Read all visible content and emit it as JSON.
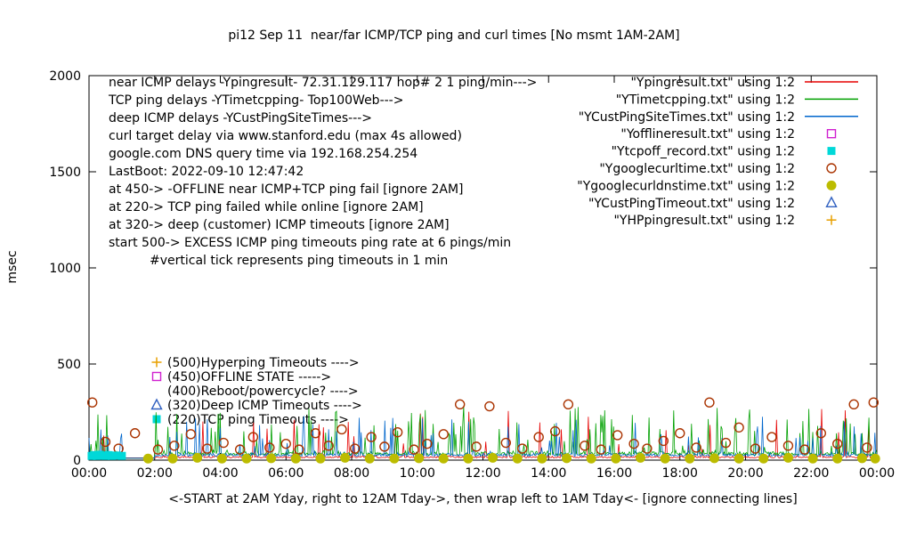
{
  "title": "pi12 Sep 11  near/far ICMP/TCP ping and curl times [No msmt 1AM-2AM]",
  "ylabel": "msec",
  "xlabel": "<-START at 2AM Yday, right to 12AM Tday->, then wrap left to 1AM Tday<- [ignore connecting lines]",
  "chart_data": {
    "type": "line",
    "x_range_hours": [
      0,
      24
    ],
    "ylim": [
      0,
      2000
    ],
    "y_ticks": [
      0,
      500,
      1000,
      1500,
      2000
    ],
    "x_ticks": [
      "00:00",
      "02:00",
      "04:00",
      "06:00",
      "08:00",
      "10:00",
      "12:00",
      "14:00",
      "16:00",
      "18:00",
      "20:00",
      "22:00",
      "00:00"
    ],
    "grid": false,
    "legend_position": "top-right",
    "legend": [
      {
        "label": "\"Ypingresult.txt\" using 1:2",
        "sample": "line",
        "color": "#e60000"
      },
      {
        "label": "\"YTimetcpping.txt\" using 1:2",
        "sample": "line",
        "color": "#00a000"
      },
      {
        "label": "\"YCustPingSiteTimes.txt\" using 1:2",
        "sample": "line",
        "color": "#0066cc"
      },
      {
        "label": "\"Yofflineresult.txt\" using 1:2",
        "sample": "open-square",
        "color": "#d020d0"
      },
      {
        "label": "\"Ytcpoff_record.txt\" using 1:2",
        "sample": "filled-square",
        "color": "#00d8d8"
      },
      {
        "label": "\"Ygooglecurltime.txt\" using 1:2",
        "sample": "open-circle",
        "color": "#aa3300"
      },
      {
        "label": "\"Ygooglecurldnstime.txt\" using 1:2",
        "sample": "filled-circle",
        "color": "#bcbc00"
      },
      {
        "label": "\"YCustPingTimeout.txt\" using 1:2",
        "sample": "open-triangle",
        "color": "#3060c0"
      },
      {
        "label": "\"YHPpingresult.txt\" using 1:2",
        "sample": "plus",
        "color": "#e8a000"
      }
    ],
    "info_lines": [
      "near ICMP delays -Ypingresult- 72.31.129.117 hop# 2 1 ping/min--->",
      "TCP ping delays -YTimetcpping- Top100Web--->",
      "deep ICMP delays -YCustPingSiteTimes--->",
      "curl target delay via www.stanford.edu (max 4s allowed)",
      "google.com DNS query time via 192.168.254.254",
      "LastBoot: 2022-09-10 12:47:42",
      "at 450-> -OFFLINE near ICMP+TCP ping fail [ignore 2AM]",
      "at 220-> TCP ping failed while online [ignore 2AM]",
      "at 320-> deep (customer) ICMP timeouts [ignore 2AM]",
      "start 500-> EXCESS ICMP ping timeouts ping rate at 6 pings/min",
      "#vertical tick represents ping timeouts in 1 min"
    ],
    "level_annotations": [
      {
        "label": "(500)Hyperping Timeouts ---->",
        "marker": "plus",
        "color": "#e8a000"
      },
      {
        "label": "(450)OFFLINE STATE ----->",
        "marker": "open-square",
        "color": "#d020d0"
      },
      {
        "label": "(400)Reboot/powercycle? ---->",
        "marker": "none",
        "color": ""
      },
      {
        "label": "(320)Deep ICMP Timeouts ---->",
        "marker": "open-triangle",
        "color": "#3060c0"
      },
      {
        "label": "(220)TCP ping Timeouts ---->",
        "marker": "filled-square",
        "color": "#00d8d8"
      }
    ],
    "no_msmt_window_hours": [
      1,
      2
    ],
    "line_series": [
      {
        "name": "near-icmp-ping",
        "color": "#e60000",
        "base": 12,
        "jitter": 9,
        "spike_prob": 0.05,
        "spike_max": 260,
        "flat_value": 12,
        "points": 700,
        "seed": 11
      },
      {
        "name": "tcp-ping",
        "color": "#00a000",
        "base": 25,
        "jitter": 22,
        "spike_prob": 0.16,
        "spike_max": 240,
        "flat_value": 10,
        "points": 800,
        "seed": 22
      },
      {
        "name": "deep-icmp-ping",
        "color": "#0066cc",
        "base": 20,
        "jitter": 16,
        "spike_prob": 0.12,
        "spike_max": 200,
        "flat_value": 10,
        "points": 800,
        "seed": 33
      }
    ],
    "scatter_series": [
      {
        "name": "google-curl-time",
        "marker": "open-circle",
        "color": "#aa3300",
        "points": [
          [
            0.1,
            300
          ],
          [
            0.5,
            95
          ],
          [
            0.9,
            60
          ],
          [
            1.4,
            140
          ],
          [
            2.1,
            55
          ],
          [
            2.6,
            75
          ],
          [
            3.1,
            135
          ],
          [
            3.6,
            60
          ],
          [
            4.1,
            90
          ],
          [
            4.6,
            55
          ],
          [
            5.0,
            120
          ],
          [
            5.5,
            65
          ],
          [
            6.0,
            85
          ],
          [
            6.4,
            55
          ],
          [
            6.9,
            140
          ],
          [
            7.3,
            75
          ],
          [
            7.7,
            160
          ],
          [
            8.1,
            60
          ],
          [
            8.6,
            120
          ],
          [
            9.0,
            70
          ],
          [
            9.4,
            145
          ],
          [
            9.9,
            55
          ],
          [
            10.3,
            85
          ],
          [
            10.8,
            135
          ],
          [
            11.3,
            290
          ],
          [
            11.8,
            70
          ],
          [
            12.2,
            280
          ],
          [
            12.7,
            90
          ],
          [
            13.2,
            60
          ],
          [
            13.7,
            120
          ],
          [
            14.2,
            150
          ],
          [
            14.6,
            290
          ],
          [
            15.1,
            75
          ],
          [
            15.6,
            55
          ],
          [
            16.1,
            130
          ],
          [
            16.6,
            85
          ],
          [
            17.0,
            60
          ],
          [
            17.5,
            100
          ],
          [
            18.0,
            140
          ],
          [
            18.5,
            65
          ],
          [
            18.9,
            300
          ],
          [
            19.4,
            90
          ],
          [
            19.8,
            170
          ],
          [
            20.3,
            60
          ],
          [
            20.8,
            120
          ],
          [
            21.3,
            75
          ],
          [
            21.8,
            55
          ],
          [
            22.3,
            140
          ],
          [
            22.8,
            85
          ],
          [
            23.3,
            290
          ],
          [
            23.7,
            65
          ],
          [
            23.9,
            300
          ]
        ]
      },
      {
        "name": "google-dns-time",
        "marker": "filled-circle",
        "color": "#bcbc00",
        "points": [
          [
            1.8,
            8
          ],
          [
            2.55,
            8
          ],
          [
            3.3,
            12
          ],
          [
            4.05,
            8
          ],
          [
            4.8,
            8
          ],
          [
            5.55,
            10
          ],
          [
            6.3,
            8
          ],
          [
            7.05,
            8
          ],
          [
            7.8,
            12
          ],
          [
            8.55,
            8
          ],
          [
            9.3,
            8
          ],
          [
            10.05,
            10
          ],
          [
            10.8,
            8
          ],
          [
            11.55,
            8
          ],
          [
            12.3,
            12
          ],
          [
            13.05,
            8
          ],
          [
            13.8,
            8
          ],
          [
            14.55,
            10
          ],
          [
            15.3,
            8
          ],
          [
            16.05,
            8
          ],
          [
            16.8,
            12
          ],
          [
            17.55,
            8
          ],
          [
            18.3,
            8
          ],
          [
            19.05,
            10
          ],
          [
            19.8,
            8
          ],
          [
            20.55,
            8
          ],
          [
            21.3,
            12
          ],
          [
            22.05,
            8
          ],
          [
            22.8,
            8
          ],
          [
            23.55,
            10
          ],
          [
            23.95,
            8
          ]
        ]
      },
      {
        "name": "tcp-offline-record",
        "marker": "filled-square",
        "color": "#00d8d8",
        "points": [
          [
            0.08,
            22
          ],
          [
            0.16,
            26
          ],
          [
            0.24,
            22
          ],
          [
            0.32,
            28
          ],
          [
            0.4,
            24
          ],
          [
            0.5,
            22
          ],
          [
            0.6,
            26
          ],
          [
            0.7,
            22
          ],
          [
            0.85,
            24
          ],
          [
            1.0,
            22
          ]
        ]
      },
      {
        "name": "offline-state",
        "marker": "open-square",
        "color": "#d020d0",
        "points": []
      },
      {
        "name": "cust-ping-timeout",
        "marker": "open-triangle",
        "color": "#3060c0",
        "points": []
      },
      {
        "name": "hp-ping-result",
        "marker": "plus",
        "color": "#e8a000",
        "points": []
      }
    ]
  }
}
